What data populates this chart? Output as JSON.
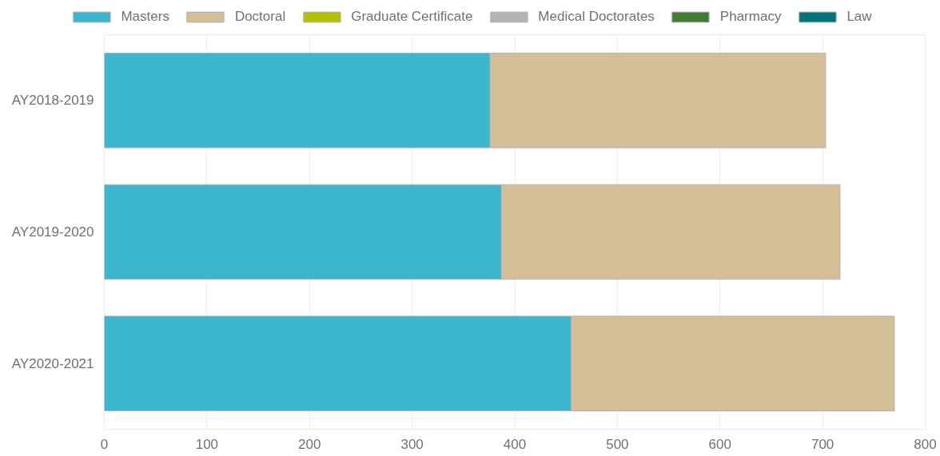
{
  "chart_data": {
    "type": "bar",
    "orientation": "horizontal",
    "stacked": true,
    "categories": [
      "AY2018-2019",
      "AY2019-2020",
      "AY2020-2021"
    ],
    "series": [
      {
        "name": "Masters",
        "color": "#3cb5ce",
        "values": [
          376,
          387,
          455
        ]
      },
      {
        "name": "Doctoral",
        "color": "#d3be95",
        "values": [
          327,
          330,
          315
        ]
      },
      {
        "name": "Graduate Certificate",
        "color": "#b5c000",
        "values": [
          null,
          null,
          null
        ]
      },
      {
        "name": "Medical Doctorates",
        "color": "#b3b3b3",
        "values": [
          null,
          null,
          null
        ]
      },
      {
        "name": "Pharmacy",
        "color": "#437b32",
        "values": [
          null,
          null,
          null
        ]
      },
      {
        "name": "Law",
        "color": "#00747a",
        "values": [
          null,
          null,
          null
        ]
      }
    ],
    "xlim": [
      0,
      800
    ],
    "xticks": [
      0,
      100,
      200,
      300,
      400,
      500,
      600,
      700,
      800
    ],
    "grid": "x",
    "legend": "top"
  }
}
